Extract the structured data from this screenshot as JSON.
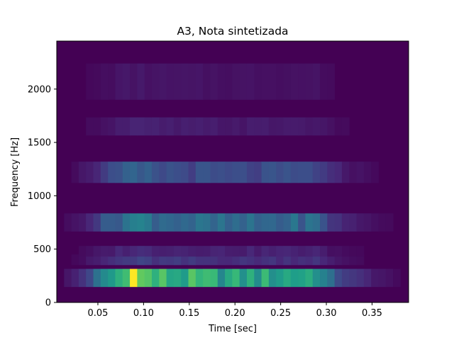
{
  "chart_data": {
    "type": "heatmap",
    "title": "A3, Nota sintetizada",
    "xlabel": "Time [sec]",
    "ylabel": "Frequency [Hz]",
    "xlim": [
      0.005,
      0.39
    ],
    "ylim": [
      0,
      2450
    ],
    "xticks": [
      0.05,
      0.1,
      0.15,
      0.2,
      0.25,
      0.3,
      0.35
    ],
    "xtick_labels": [
      "0.05",
      "0.10",
      "0.15",
      "0.20",
      "0.25",
      "0.30",
      "0.35"
    ],
    "yticks": [
      0,
      500,
      1000,
      1500,
      2000
    ],
    "ytick_labels": [
      "0",
      "500",
      "1000",
      "1500",
      "2000"
    ],
    "colormap": "viridis",
    "grid": false,
    "time_bins": [
      0.005,
      0.013,
      0.021,
      0.029,
      0.037,
      0.045,
      0.053,
      0.061,
      0.069,
      0.077,
      0.085,
      0.093,
      0.101,
      0.109,
      0.117,
      0.125,
      0.133,
      0.141,
      0.149,
      0.157,
      0.165,
      0.173,
      0.181,
      0.189,
      0.197,
      0.205,
      0.213,
      0.221,
      0.229,
      0.237,
      0.245,
      0.253,
      0.261,
      0.269,
      0.277,
      0.285,
      0.293,
      0.301,
      0.309,
      0.317,
      0.325,
      0.333,
      0.341,
      0.349,
      0.357,
      0.365,
      0.373,
      0.381,
      0.39
    ],
    "harmonics": [
      {
        "center_hz": 0,
        "halfwidth_hz": 20,
        "level": 0.0
      },
      {
        "center_hz": 230,
        "halfwidth_hz": 85,
        "level": 0.75
      },
      {
        "center_hz": 400,
        "halfwidth_hz": 50,
        "level": 0.18
      },
      {
        "center_hz": 480,
        "halfwidth_hz": 50,
        "level": 0.12
      },
      {
        "center_hz": 750,
        "halfwidth_hz": 85,
        "level": 0.42
      },
      {
        "center_hz": 1220,
        "halfwidth_hz": 100,
        "level": 0.28
      },
      {
        "center_hz": 1650,
        "halfwidth_hz": 85,
        "level": 0.09
      },
      {
        "center_hz": 2070,
        "halfwidth_hz": 170,
        "level": 0.06
      }
    ],
    "envelope": [
      {
        "t": 0.005,
        "v": 0.0
      },
      {
        "t": 0.03,
        "v": 0.15
      },
      {
        "t": 0.05,
        "v": 0.45
      },
      {
        "t": 0.07,
        "v": 0.8
      },
      {
        "t": 0.09,
        "v": 1.0
      },
      {
        "t": 0.12,
        "v": 0.85
      },
      {
        "t": 0.2,
        "v": 0.75
      },
      {
        "t": 0.29,
        "v": 0.8
      },
      {
        "t": 0.3,
        "v": 0.45
      },
      {
        "t": 0.33,
        "v": 0.18
      },
      {
        "t": 0.37,
        "v": 0.05
      },
      {
        "t": 0.39,
        "v": 0.0
      }
    ]
  }
}
